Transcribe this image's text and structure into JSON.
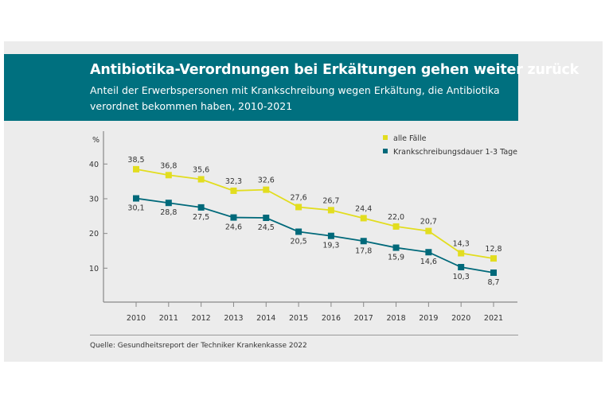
{
  "header": {
    "title": "Antibiotika-Verordnungen bei Erkältungen gehen weiter zurück",
    "subtitle": "Anteil der Erwerbspersonen mit Krankschreibung wegen Erkältung, die Antibiotika verordnet bekommen haben, 2010-2021"
  },
  "source": "Quelle: Gesundheitsreport der Techniker Krankenkasse 2022",
  "colors": {
    "header": "#00707f",
    "alle": "#e2dd1f",
    "kurz": "#00697a",
    "background": "#ececec"
  },
  "chart_data": {
    "type": "line",
    "ylabel": "%",
    "ylim": [
      0,
      45
    ],
    "yticks": [
      10,
      20,
      30,
      40
    ],
    "categories": [
      "2010",
      "2011",
      "2012",
      "2013",
      "2014",
      "2015",
      "2016",
      "2017",
      "2018",
      "2019",
      "2020",
      "2021"
    ],
    "legend_position": "top-right",
    "grid": false,
    "series": [
      {
        "name": "alle Fälle",
        "color": "#e2dd1f",
        "values": [
          38.5,
          36.8,
          35.6,
          32.3,
          32.6,
          27.6,
          26.7,
          24.4,
          22.0,
          20.7,
          14.3,
          12.8
        ],
        "labels": [
          "38,5",
          "36,8",
          "35,6",
          "32,3",
          "32,6",
          "27,6",
          "26,7",
          "24,4",
          "22,0",
          "20,7",
          "14,3",
          "12,8"
        ]
      },
      {
        "name": "Krankschreibungsdauer 1-3 Tage",
        "color": "#00697a",
        "values": [
          30.1,
          28.8,
          27.5,
          24.6,
          24.5,
          20.5,
          19.3,
          17.8,
          15.9,
          14.6,
          10.3,
          8.7
        ],
        "labels": [
          "30,1",
          "28,8",
          "27,5",
          "24,6",
          "24,5",
          "20,5",
          "19,3",
          "17,8",
          "15,9",
          "14,6",
          "10,3",
          "8,7"
        ]
      }
    ]
  }
}
